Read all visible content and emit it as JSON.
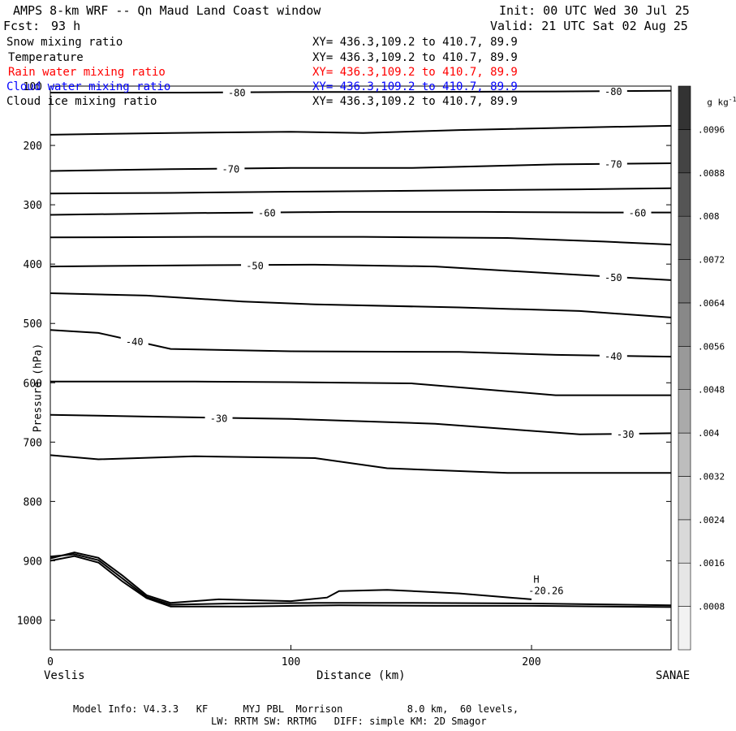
{
  "header": {
    "title": "AMPS 8-km WRF -- Qn Maud Land Coast window",
    "init": "Init: 00 UTC Wed 30 Jul 25",
    "fcst_label": "Fcst:",
    "fcst_value": "93 h",
    "valid": "Valid: 21 UTC Sat 02 Aug 25"
  },
  "legend": [
    {
      "name": "Snow mixing ratio",
      "xy": "XY= 436.3,109.2 to 410.7, 89.9",
      "color": "#000000"
    },
    {
      "name": "Temperature",
      "xy": "XY= 436.3,109.2 to 410.7, 89.9",
      "color": "#000000"
    },
    {
      "name": "Rain water mixing ratio",
      "xy": "XY= 436.3,109.2 to 410.7, 89.9",
      "color": "#ff0000"
    },
    {
      "name": "Cloud water mixing ratio",
      "xy": "XY= 436.3,109.2 to 410.7, 89.9",
      "color": "#0000ff"
    },
    {
      "name": "Cloud ice mixing ratio",
      "xy": "XY= 436.3,109.2 to 410.7, 89.9",
      "color": "#000000"
    }
  ],
  "axes": {
    "ylabel": "Pressure (hPa)",
    "xlabel": "Distance (km)",
    "left_station": "Veslis",
    "right_station": "SANAE"
  },
  "colorbar": {
    "unit": "g kg",
    "unit_sup": "-1",
    "ticks": [
      ".0096",
      ".0088",
      ".008",
      ".0072",
      ".0064",
      ".0056",
      ".0048",
      ".004",
      ".0032",
      ".0024",
      ".0016",
      ".0008"
    ],
    "levels": 12,
    "colors": [
      "#f2f2f2",
      "#e6e6e6",
      "#d9d9d9",
      "#cccccc",
      "#bdbdbd",
      "#aaaaaa",
      "#999999",
      "#888888",
      "#777777",
      "#666666",
      "#555555",
      "#444444",
      "#333333"
    ]
  },
  "footer": {
    "line1": "Model Info: V4.3.3   KF      MYJ PBL  Morrison           8.0 km,  60 levels,",
    "line2": "LW: RRTM SW: RRTMG   DIFF: simple KM: 2D Smagor"
  },
  "chart_data": {
    "type": "line",
    "title": "Temperature",
    "xlabel": "Distance (km)",
    "ylabel": "Pressure (hPa)",
    "xlim": [
      0,
      258
    ],
    "ylim": [
      1050,
      100
    ],
    "xticks": [
      0,
      100,
      200
    ],
    "yticks": [
      100,
      200,
      300,
      400,
      500,
      600,
      700,
      800,
      900,
      1000
    ],
    "contours": [
      {
        "value": -80,
        "label": "-80",
        "points": [
          [
            0,
            111
          ],
          [
            55,
            111
          ],
          [
            100,
            110
          ],
          [
            150,
            110
          ],
          [
            210,
            109
          ],
          [
            258,
            108
          ]
        ]
      },
      {
        "value": -75,
        "label": "",
        "points": [
          [
            0,
            182
          ],
          [
            50,
            179
          ],
          [
            100,
            177
          ],
          [
            130,
            179
          ],
          [
            170,
            174
          ],
          [
            230,
            169
          ],
          [
            258,
            167
          ]
        ]
      },
      {
        "value": -70,
        "label": "-70",
        "points": [
          [
            0,
            243
          ],
          [
            50,
            240
          ],
          [
            100,
            238
          ],
          [
            150,
            238
          ],
          [
            210,
            232
          ],
          [
            258,
            230
          ]
        ]
      },
      {
        "value": -65,
        "label": "",
        "points": [
          [
            0,
            281
          ],
          [
            50,
            280
          ],
          [
            100,
            278
          ],
          [
            160,
            276
          ],
          [
            220,
            274
          ],
          [
            258,
            272
          ]
        ]
      },
      {
        "value": -60,
        "label": "-60",
        "points": [
          [
            0,
            317
          ],
          [
            60,
            314
          ],
          [
            120,
            312
          ],
          [
            180,
            312
          ],
          [
            230,
            313
          ],
          [
            258,
            313
          ]
        ]
      },
      {
        "value": -55,
        "label": "",
        "points": [
          [
            0,
            355
          ],
          [
            70,
            354
          ],
          [
            130,
            354
          ],
          [
            190,
            356
          ],
          [
            230,
            362
          ],
          [
            258,
            367
          ]
        ]
      },
      {
        "value": -50,
        "label": "-50",
        "points": [
          [
            0,
            404
          ],
          [
            60,
            402
          ],
          [
            110,
            401
          ],
          [
            160,
            404
          ],
          [
            210,
            416
          ],
          [
            258,
            427
          ]
        ]
      },
      {
        "value": -45,
        "label": "",
        "points": [
          [
            0,
            449
          ],
          [
            40,
            453
          ],
          [
            80,
            463
          ],
          [
            110,
            468
          ],
          [
            170,
            473
          ],
          [
            220,
            479
          ],
          [
            258,
            490
          ]
        ]
      },
      {
        "value": -40,
        "label": "-40",
        "points": [
          [
            0,
            511
          ],
          [
            20,
            516
          ],
          [
            50,
            543
          ],
          [
            100,
            547
          ],
          [
            170,
            548
          ],
          [
            210,
            553
          ],
          [
            258,
            556
          ]
        ]
      },
      {
        "value": -35,
        "label": "",
        "points": [
          [
            0,
            598
          ],
          [
            60,
            598
          ],
          [
            100,
            599
          ],
          [
            150,
            601
          ],
          [
            210,
            621
          ],
          [
            258,
            621
          ]
        ]
      },
      {
        "value": -30,
        "label": "-30",
        "points": [
          [
            0,
            654
          ],
          [
            40,
            657
          ],
          [
            100,
            661
          ],
          [
            160,
            669
          ],
          [
            220,
            687
          ],
          [
            258,
            685
          ]
        ]
      },
      {
        "value": -25,
        "label": "",
        "points": [
          [
            0,
            722
          ],
          [
            20,
            729
          ],
          [
            60,
            724
          ],
          [
            110,
            727
          ],
          [
            140,
            744
          ],
          [
            190,
            752
          ],
          [
            258,
            752
          ]
        ]
      }
    ],
    "terrain": [
      {
        "points": [
          [
            0,
            896
          ],
          [
            10,
            886
          ],
          [
            20,
            895
          ],
          [
            30,
            925
          ],
          [
            40,
            958
          ],
          [
            50,
            971
          ],
          [
            70,
            965
          ],
          [
            100,
            968
          ],
          [
            115,
            962
          ],
          [
            120,
            951
          ],
          [
            140,
            949
          ],
          [
            170,
            955
          ],
          [
            200,
            965
          ]
        ]
      },
      {
        "points": [
          [
            0,
            900
          ],
          [
            10,
            892
          ],
          [
            20,
            903
          ],
          [
            30,
            935
          ],
          [
            40,
            963
          ],
          [
            50,
            977
          ],
          [
            80,
            977
          ],
          [
            120,
            975
          ],
          [
            160,
            976
          ],
          [
            200,
            976
          ],
          [
            258,
            978
          ]
        ]
      },
      {
        "points": [
          [
            0,
            893
          ],
          [
            10,
            889
          ],
          [
            20,
            899
          ],
          [
            30,
            930
          ],
          [
            40,
            961
          ],
          [
            50,
            974
          ],
          [
            75,
            972
          ],
          [
            110,
            971
          ],
          [
            150,
            971
          ],
          [
            200,
            972
          ],
          [
            258,
            975
          ]
        ]
      }
    ],
    "annotations": [
      {
        "text": "H",
        "x": 202,
        "p": 937
      },
      {
        "text": "-20.26",
        "x": 206,
        "p": 956
      }
    ]
  }
}
